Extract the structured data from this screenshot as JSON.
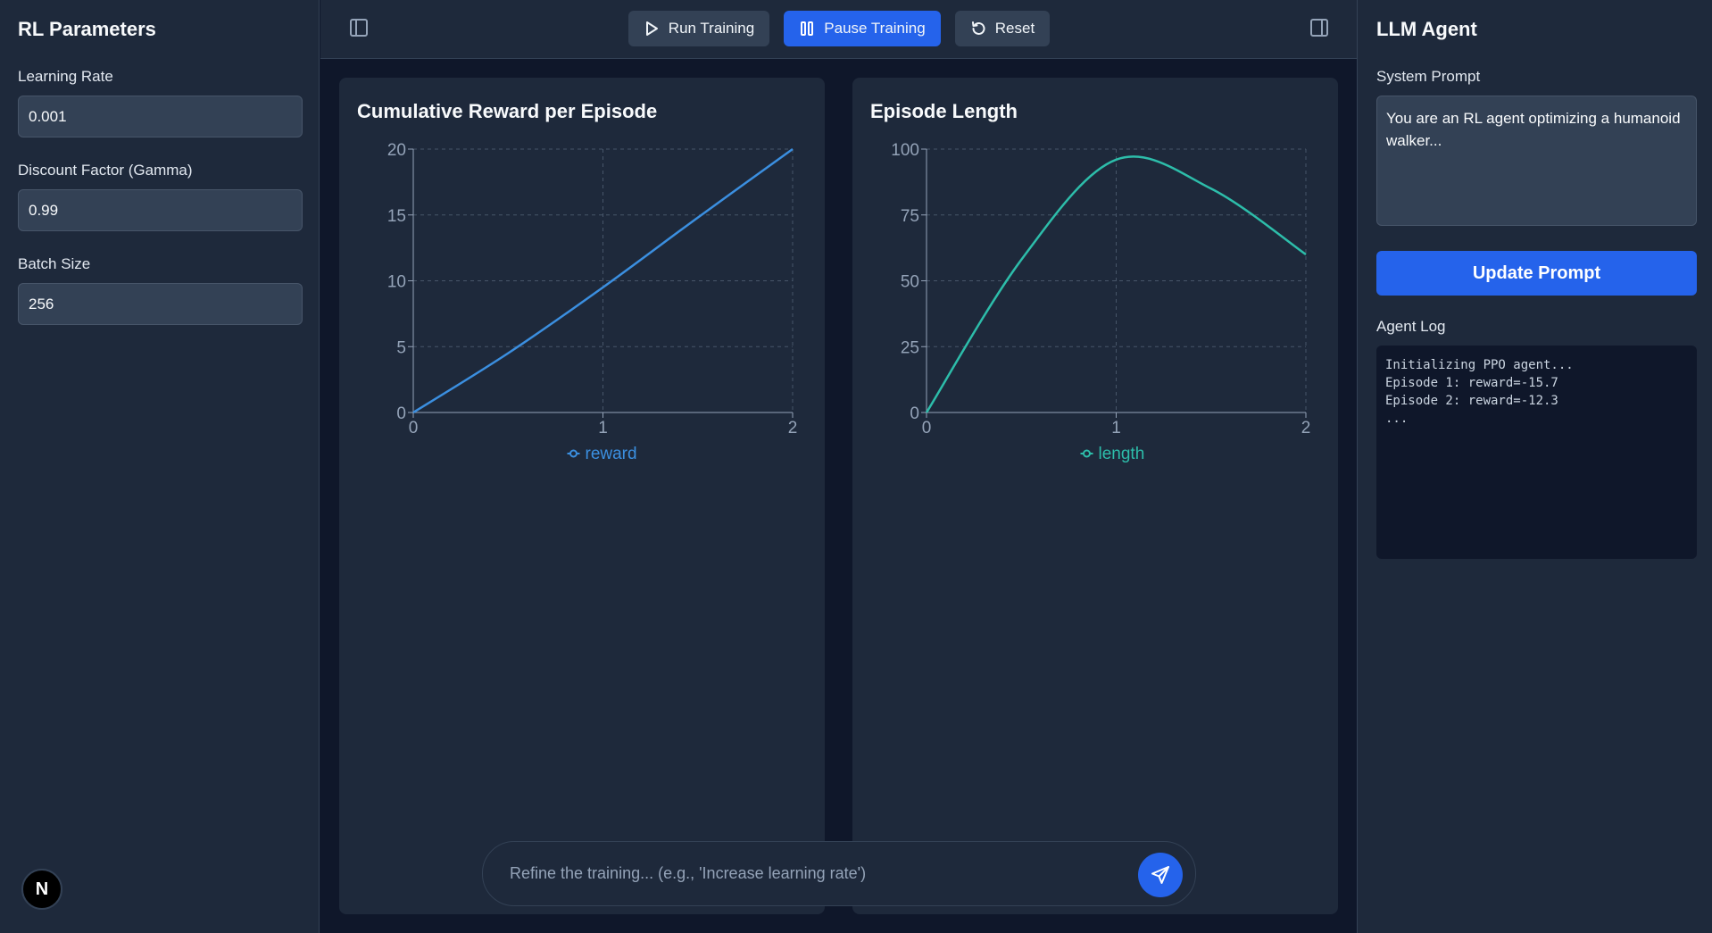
{
  "left_panel": {
    "title": "RL Parameters",
    "fields": [
      {
        "label": "Learning Rate",
        "value": "0.001"
      },
      {
        "label": "Discount Factor (Gamma)",
        "value": "0.99"
      },
      {
        "label": "Batch Size",
        "value": "256"
      }
    ],
    "avatar_letter": "N"
  },
  "toolbar": {
    "run_label": "Run Training",
    "pause_label": "Pause Training",
    "reset_label": "Reset"
  },
  "charts": {
    "reward": {
      "title": "Cumulative Reward per Episode",
      "legend": "reward",
      "color": "#3b8fe0"
    },
    "length": {
      "title": "Episode Length",
      "legend": "length",
      "color": "#2dbdaa"
    }
  },
  "chart_data": [
    {
      "type": "line",
      "title": "Cumulative Reward per Episode",
      "x": [
        0,
        0.5,
        1,
        1.5,
        2
      ],
      "series": [
        {
          "name": "reward",
          "values": [
            0,
            4.5,
            9.5,
            14.8,
            20
          ]
        }
      ],
      "xlim": [
        0,
        2
      ],
      "ylim": [
        0,
        20
      ],
      "xticks": [
        0,
        1,
        2
      ],
      "yticks": [
        0,
        5,
        10,
        15,
        20
      ],
      "grid": true,
      "legend": "bottom"
    },
    {
      "type": "line",
      "title": "Episode Length",
      "x": [
        0,
        0.5,
        1,
        1.5,
        2
      ],
      "series": [
        {
          "name": "length",
          "values": [
            0,
            58,
            96,
            85,
            60
          ]
        }
      ],
      "xlim": [
        0,
        2
      ],
      "ylim": [
        0,
        100
      ],
      "xticks": [
        0,
        1,
        2
      ],
      "yticks": [
        0,
        25,
        50,
        75,
        100
      ],
      "grid": true,
      "legend": "bottom"
    }
  ],
  "chat": {
    "placeholder": "Refine the training... (e.g., 'Increase learning rate')"
  },
  "right_panel": {
    "title": "LLM Agent",
    "prompt_label": "System Prompt",
    "prompt_value": "You are an RL agent optimizing a humanoid walker...",
    "update_label": "Update Prompt",
    "log_label": "Agent Log",
    "log_lines": [
      "Initializing PPO agent...",
      "Episode 1: reward=-15.7",
      "Episode 2: reward=-12.3",
      "..."
    ]
  }
}
